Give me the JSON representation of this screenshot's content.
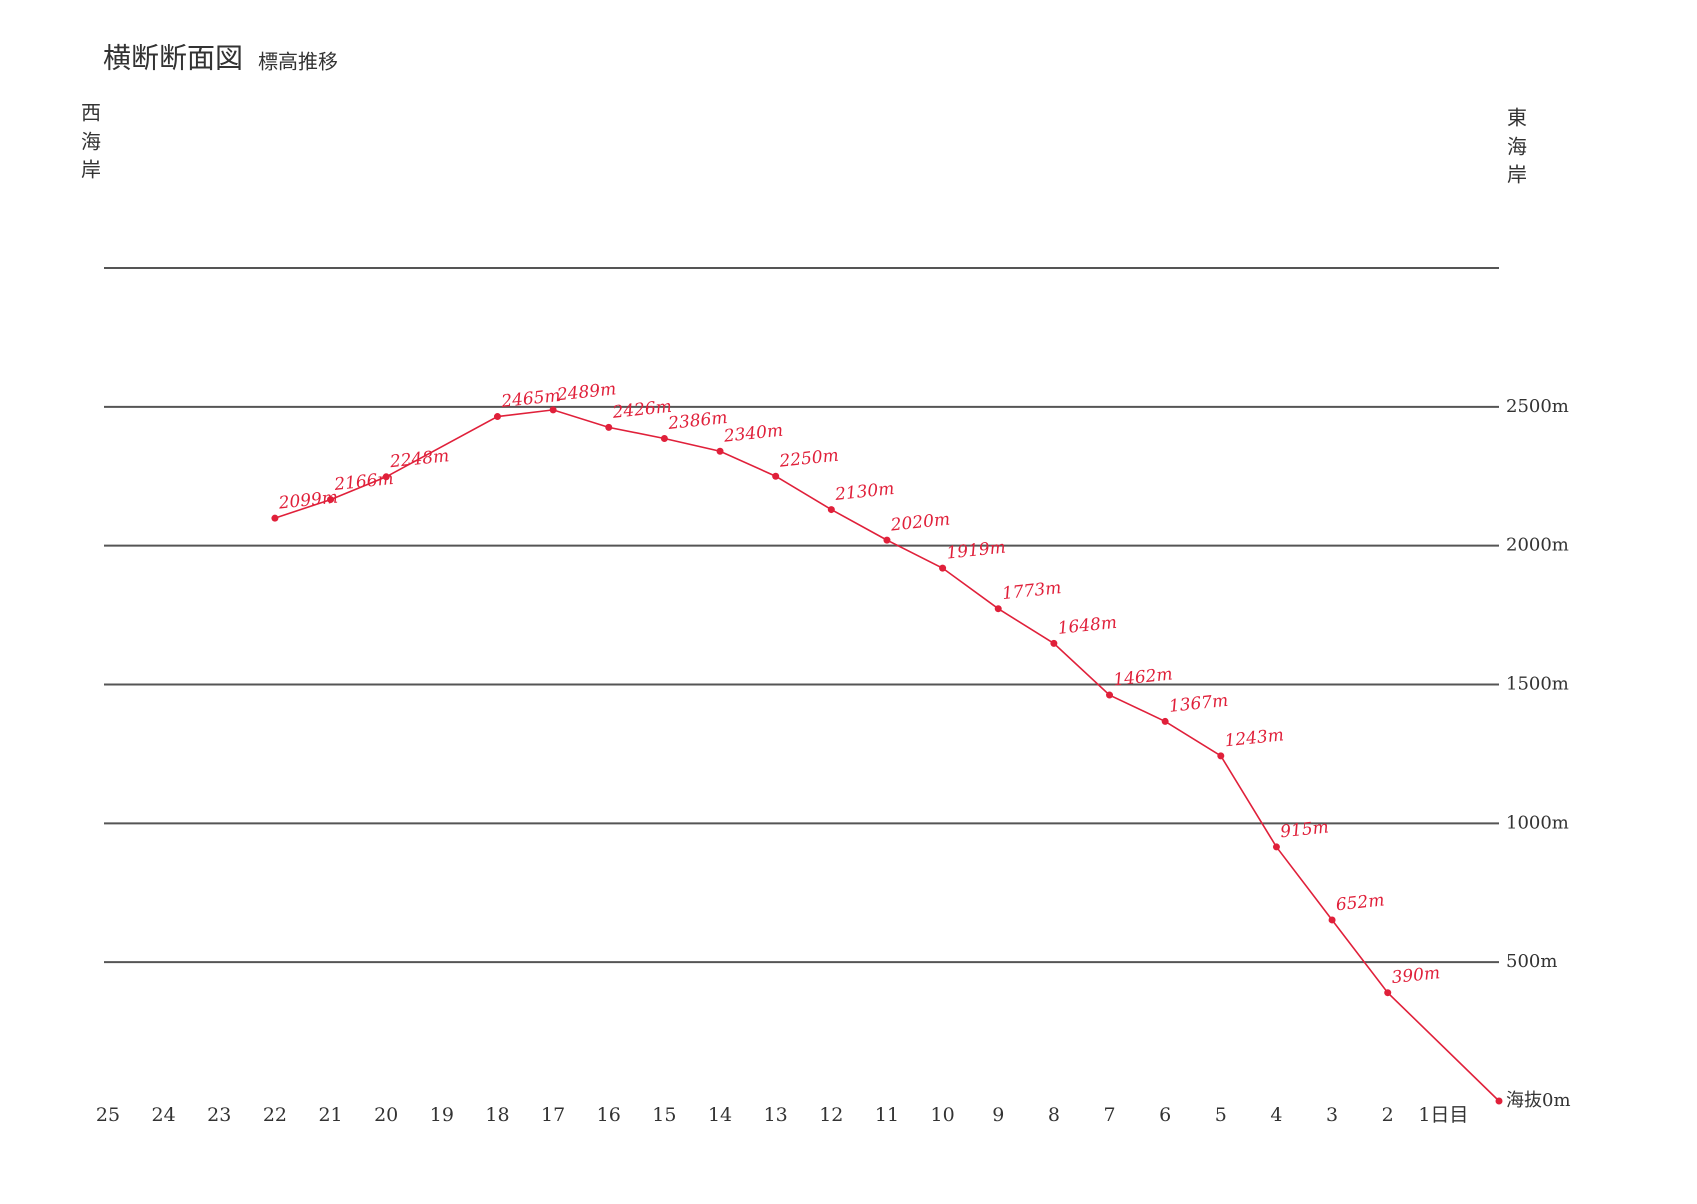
{
  "chart_data": {
    "type": "line",
    "title": "横断断面図",
    "subtitle": "標高推移",
    "annotations": [
      "西",
      "海",
      "岸",
      "東",
      "海",
      "岸"
    ],
    "x": [
      22,
      21,
      20,
      18,
      17,
      16,
      15,
      14,
      13,
      12,
      11,
      10,
      9,
      8,
      7,
      6,
      5,
      4,
      3,
      2,
      0
    ],
    "series": [
      {
        "color": "#e0203a",
        "values": [
          2099,
          2166,
          2248,
          2465,
          2489,
          2426,
          2386,
          2340,
          2250,
          2130,
          2020,
          1919,
          1773,
          1648,
          1462,
          1367,
          1243,
          915,
          652,
          390,
          0
        ],
        "value_labels": [
          "2099m",
          "2166m",
          "2248m",
          "2465m",
          "2489m",
          "2426m",
          "2386m",
          "2340m",
          "2250m",
          "2130m",
          "2020m",
          "1919m",
          "1773m",
          "1648m",
          "1462m",
          "1367m",
          "1243m",
          "915m",
          "652m",
          "390m",
          null
        ]
      }
    ],
    "xlim": [
      25,
      0
    ],
    "xticks": [
      25,
      24,
      23,
      22,
      21,
      20,
      19,
      18,
      17,
      16,
      15,
      14,
      13,
      12,
      11,
      10,
      9,
      8,
      7,
      6,
      5,
      4,
      3,
      2,
      {
        "value": 1,
        "label": "1日目"
      }
    ],
    "ylim": [
      0,
      3000
    ],
    "yticks": [
      {
        "value": 0,
        "label": "海抜0m"
      },
      {
        "value": 500,
        "label": "500m"
      },
      {
        "value": 1000,
        "label": "1000m"
      },
      {
        "value": 1500,
        "label": "1500m"
      },
      {
        "value": 2000,
        "label": "2000m"
      },
      {
        "value": 2500,
        "label": "2500m"
      }
    ],
    "grid": true
  }
}
